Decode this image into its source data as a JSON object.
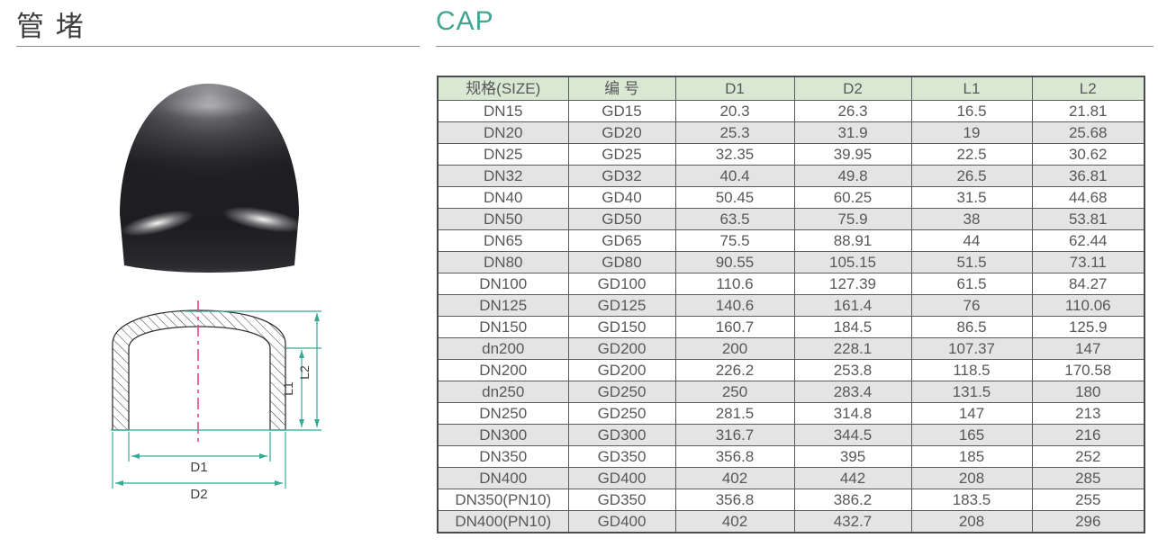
{
  "page": {
    "title_cn": "管 堵",
    "title_en": "CAP"
  },
  "colors": {
    "accent_teal": "#42a693",
    "dimension_line_teal": "#35ab95",
    "centerline_pink": "#e8418a",
    "table_header_green": "#d9e8d2",
    "table_alt_row_gray": "#e4e4e4",
    "table_border_gray": "#5a5b5d",
    "text_dark_gray": "#57585a"
  },
  "figures": {
    "photo": "black glossy pipe cap product photo",
    "drawing": "cap cross-section with hatched shell, centerline and dimensions",
    "labels": {
      "d1": "D1",
      "d2": "D2",
      "l1": "L1",
      "l2": "L2"
    }
  },
  "table": {
    "headers": [
      "规格(SIZE)",
      "编 号",
      "D1",
      "D2",
      "L1",
      "L2"
    ],
    "rows": [
      [
        "DN15",
        "GD15",
        "20.3",
        "26.3",
        "16.5",
        "21.81"
      ],
      [
        "DN20",
        "GD20",
        "25.3",
        "31.9",
        "19",
        "25.68"
      ],
      [
        "DN25",
        "GD25",
        "32.35",
        "39.95",
        "22.5",
        "30.62"
      ],
      [
        "DN32",
        "GD32",
        "40.4",
        "49.8",
        "26.5",
        "36.81"
      ],
      [
        "DN40",
        "GD40",
        "50.45",
        "60.25",
        "31.5",
        "44.68"
      ],
      [
        "DN50",
        "GD50",
        "63.5",
        "75.9",
        "38",
        "53.81"
      ],
      [
        "DN65",
        "GD65",
        "75.5",
        "88.91",
        "44",
        "62.44"
      ],
      [
        "DN80",
        "GD80",
        "90.55",
        "105.15",
        "51.5",
        "73.11"
      ],
      [
        "DN100",
        "GD100",
        "110.6",
        "127.39",
        "61.5",
        "84.27"
      ],
      [
        "DN125",
        "GD125",
        "140.6",
        "161.4",
        "76",
        "110.06"
      ],
      [
        "DN150",
        "GD150",
        "160.7",
        "184.5",
        "86.5",
        "125.9"
      ],
      [
        "dn200",
        "GD200",
        "200",
        "228.1",
        "107.37",
        "147"
      ],
      [
        "DN200",
        "GD200",
        "226.2",
        "253.8",
        "118.5",
        "170.58"
      ],
      [
        "dn250",
        "GD250",
        "250",
        "283.4",
        "131.5",
        "180"
      ],
      [
        "DN250",
        "GD250",
        "281.5",
        "314.8",
        "147",
        "213"
      ],
      [
        "DN300",
        "GD300",
        "316.7",
        "344.5",
        "165",
        "216"
      ],
      [
        "DN350",
        "GD350",
        "356.8",
        "395",
        "185",
        "252"
      ],
      [
        "DN400",
        "GD400",
        "402",
        "442",
        "208",
        "285"
      ],
      [
        "DN350(PN10)",
        "GD350",
        "356.8",
        "386.2",
        "183.5",
        "255"
      ],
      [
        "DN400(PN10)",
        "GD400",
        "402",
        "432.7",
        "208",
        "296"
      ]
    ]
  }
}
